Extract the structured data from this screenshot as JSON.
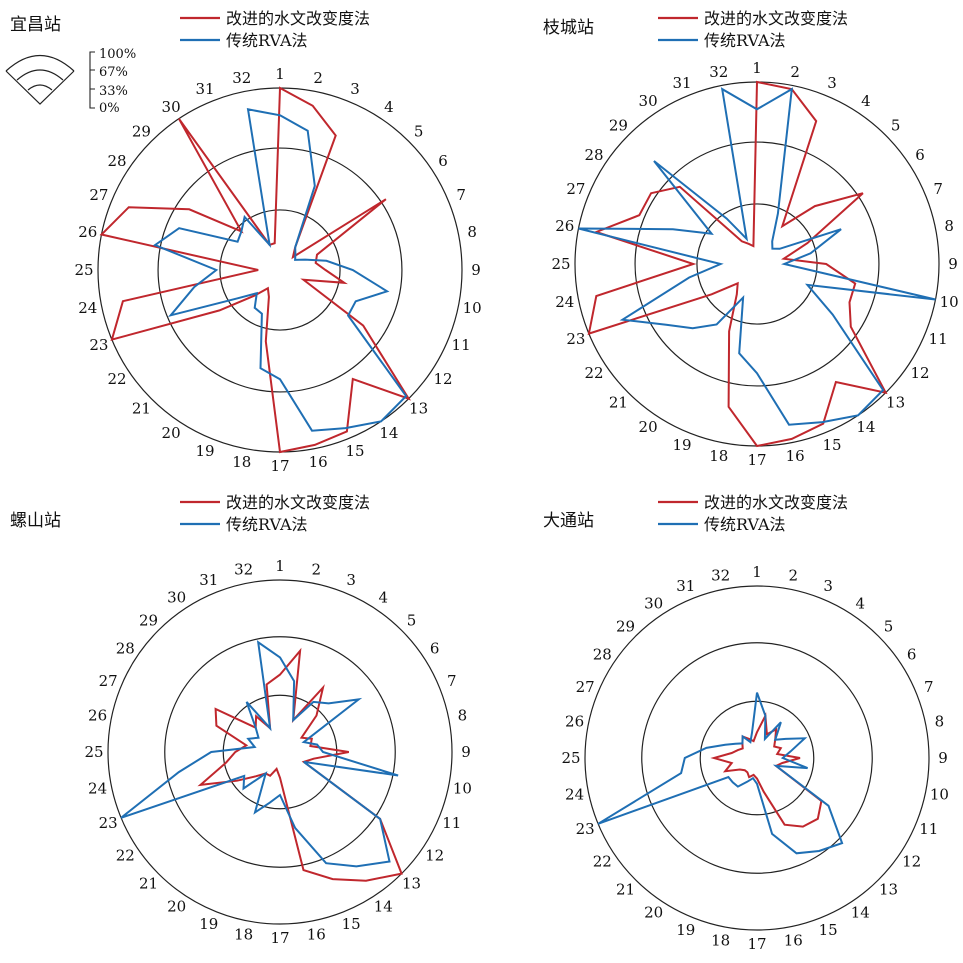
{
  "colors": {
    "improved": "#c0272d",
    "rva": "#1f6fb4",
    "ring": "#222222"
  },
  "legend": {
    "improved": "改进的水文改变度法",
    "rva": "传统RVA法"
  },
  "key": {
    "labels": [
      "100%",
      "67%",
      "33%",
      "0%"
    ]
  },
  "chart_data": [
    {
      "type": "radar",
      "station": "宜昌站",
      "axes": [
        "1",
        "2",
        "3",
        "4",
        "5",
        "6",
        "7",
        "8",
        "9",
        "10",
        "11",
        "12",
        "13",
        "14",
        "15",
        "16",
        "17",
        "18",
        "19",
        "20",
        "21",
        "22",
        "23",
        "24",
        "25",
        "26",
        "27",
        "28",
        "29",
        "30",
        "31",
        "32"
      ],
      "rmax": 100,
      "rings": [
        33,
        67,
        100
      ],
      "series": [
        {
          "name": "改进的水文改变度法",
          "key": "improved",
          "values": [
            100,
            92,
            80,
            15,
            10,
            70,
            22,
            20,
            25,
            36,
            14,
            55,
            100,
            72,
            96,
            98,
            100,
            40,
            16,
            12,
            20,
            40,
            100,
            88,
            12,
            100,
            90,
            60,
            30,
            100,
            15,
            15
          ]
        },
        {
          "name": "传统RVA法",
          "key": "rva",
          "values": [
            85,
            78,
            50,
            15,
            12,
            10,
            15,
            26,
            40,
            60,
            45,
            45,
            98,
            100,
            94,
            90,
            60,
            55,
            26,
            25,
            18,
            28,
            65,
            48,
            35,
            70,
            60,
            28,
            30,
            35,
            15,
            90
          ]
        }
      ]
    },
    {
      "type": "radar",
      "station": "枝城站",
      "axes": [
        "1",
        "2",
        "3",
        "4",
        "5",
        "6",
        "7",
        "8",
        "9",
        "10",
        "11",
        "12",
        "13",
        "14",
        "15",
        "16",
        "17",
        "18",
        "19",
        "20",
        "21",
        "22",
        "23",
        "24",
        "25",
        "26",
        "27",
        "28",
        "29",
        "30",
        "31",
        "32"
      ],
      "rmax": 100,
      "rings": [
        33,
        67,
        100
      ],
      "series": [
        {
          "name": "改进的水文改变度法",
          "key": "improved",
          "values": [
            100,
            98,
            85,
            25,
            45,
            70,
            30,
            15,
            38,
            55,
            55,
            62,
            100,
            78,
            95,
            98,
            100,
            80,
            40,
            20,
            15,
            30,
            100,
            90,
            35,
            90,
            70,
            70,
            60,
            15,
            12,
            10
          ]
        },
        {
          "name": "传统RVA法",
          "key": "rva",
          "values": [
            85,
            98,
            30,
            15,
            12,
            15,
            50,
            30,
            15,
            100,
            30,
            50,
            98,
            100,
            94,
            90,
            60,
            50,
            20,
            40,
            50,
            60,
            80,
            38,
            20,
            100,
            50,
            30,
            80,
            30,
            15,
            98
          ]
        }
      ]
    },
    {
      "type": "radar",
      "station": "螺山站",
      "axes": [
        "1",
        "2",
        "3",
        "4",
        "5",
        "6",
        "7",
        "8",
        "9",
        "10",
        "11",
        "12",
        "13",
        "14",
        "15",
        "16",
        "17",
        "18",
        "19",
        "20",
        "21",
        "22",
        "23",
        "24",
        "25",
        "26",
        "27",
        "28",
        "29",
        "30",
        "31",
        "32"
      ],
      "rmax": 100,
      "rings": [
        33,
        67,
        100
      ],
      "series": [
        {
          "name": "改进的水文改变度法",
          "key": "improved",
          "values": [
            45,
            60,
            20,
            45,
            30,
            15,
            20,
            18,
            40,
            20,
            15,
            70,
            100,
            90,
            80,
            70,
            15,
            10,
            15,
            15,
            20,
            30,
            50,
            32,
            26,
            20,
            40,
            45,
            20,
            25,
            15,
            40
          ]
        },
        {
          "name": "传统RVA法",
          "key": "rva",
          "values": [
            55,
            42,
            20,
            35,
            40,
            55,
            15,
            22,
            25,
            70,
            15,
            70,
            90,
            80,
            70,
            45,
            25,
            30,
            38,
            15,
            30,
            25,
            100,
            60,
            40,
            15,
            20,
            15,
            20,
            35,
            15,
            65
          ]
        }
      ]
    },
    {
      "type": "radar",
      "station": "大通站",
      "axes": [
        "1",
        "2",
        "3",
        "4",
        "5",
        "6",
        "7",
        "8",
        "9",
        "10",
        "11",
        "12",
        "13",
        "14",
        "15",
        "16",
        "17",
        "18",
        "19",
        "20",
        "21",
        "22",
        "23",
        "24",
        "25",
        "26",
        "27",
        "28",
        "29",
        "30",
        "31",
        "32"
      ],
      "rmax": 100,
      "rings": [
        33,
        67,
        100
      ],
      "series": [
        {
          "name": "改进的水文改变度法",
          "key": "improved",
          "values": [
            15,
            25,
            15,
            20,
            15,
            12,
            15,
            12,
            25,
            15,
            12,
            45,
            50,
            48,
            42,
            20,
            12,
            10,
            12,
            10,
            10,
            12,
            20,
            15,
            25,
            15,
            12,
            10,
            12,
            15,
            12,
            10
          ]
        },
        {
          "name": "传统RVA法",
          "key": "rva",
          "values": [
            38,
            25,
            12,
            25,
            15,
            20,
            30,
            20,
            15,
            30,
            12,
            50,
            70,
            65,
            60,
            45,
            15,
            12,
            15,
            20,
            20,
            20,
            100,
            45,
            42,
            30,
            20,
            15,
            12,
            15,
            10,
            15
          ]
        }
      ]
    }
  ]
}
